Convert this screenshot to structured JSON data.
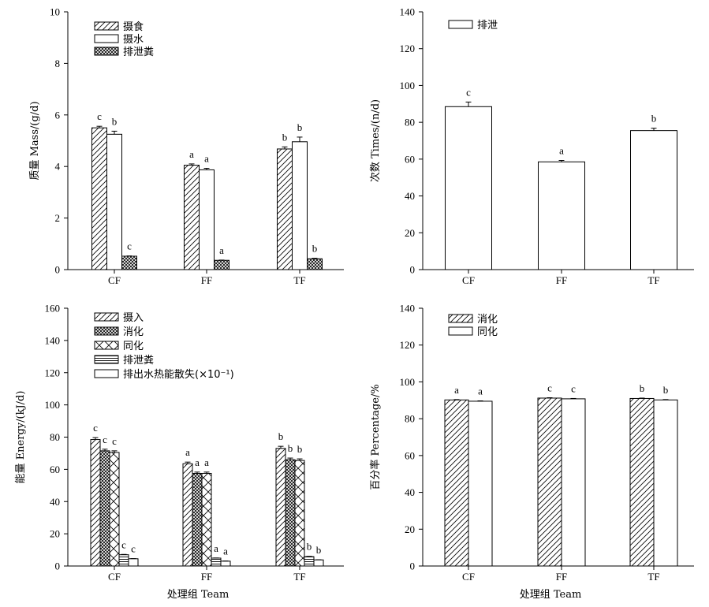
{
  "chart_data": [
    {
      "type": "bar",
      "categories": [
        "CF",
        "FF",
        "TF"
      ],
      "ylabel": "质量 Mass/(g/d)",
      "xlabel": "",
      "ylim": [
        0,
        10
      ],
      "yticks": [
        0,
        2,
        4,
        6,
        8,
        10
      ],
      "legend": "top-left",
      "series": [
        {
          "name": "摄食",
          "pattern": "diag",
          "values": [
            5.5,
            4.05,
            4.68
          ],
          "errors": [
            0.06,
            0.05,
            0.08
          ],
          "labels": [
            "c",
            "a",
            "b"
          ]
        },
        {
          "name": "摄水",
          "pattern": "none",
          "values": [
            5.25,
            3.87,
            4.96
          ],
          "errors": [
            0.12,
            0.06,
            0.18
          ],
          "labels": [
            "b",
            "a",
            "b"
          ]
        },
        {
          "name": "排泄粪",
          "pattern": "cross",
          "values": [
            0.52,
            0.36,
            0.42
          ],
          "errors": [
            0.01,
            0.01,
            0.02
          ],
          "labels": [
            "c",
            "a",
            "b"
          ]
        }
      ]
    },
    {
      "type": "bar",
      "categories": [
        "CF",
        "FF",
        "TF"
      ],
      "ylabel": "次数 Times/(n/d)",
      "xlabel": "",
      "ylim": [
        0,
        140
      ],
      "yticks": [
        0,
        20,
        40,
        60,
        80,
        100,
        120,
        140
      ],
      "legend": "top-left",
      "series": [
        {
          "name": "排泄",
          "pattern": "none",
          "values": [
            88.5,
            58.5,
            75.5
          ],
          "errors": [
            2.5,
            0.8,
            1.3
          ],
          "labels": [
            "c",
            "a",
            "b"
          ]
        }
      ]
    },
    {
      "type": "bar",
      "categories": [
        "CF",
        "FF",
        "TF"
      ],
      "ylabel": "能量 Energy/(kJ/d)",
      "xlabel": "处理组 Team",
      "ylim": [
        0,
        160
      ],
      "yticks": [
        0,
        20,
        40,
        60,
        80,
        100,
        120,
        140,
        160
      ],
      "legend": "top-left",
      "series": [
        {
          "name": "摄入",
          "pattern": "diag",
          "values": [
            78.5,
            63.5,
            73.0
          ],
          "errors": [
            1.2,
            1.0,
            1.3
          ],
          "labels": [
            "c",
            "a",
            "b"
          ]
        },
        {
          "name": "消化",
          "pattern": "cross",
          "values": [
            71.5,
            57.5,
            66.0
          ],
          "errors": [
            1.0,
            0.8,
            1.0
          ],
          "labels": [
            "c",
            "a",
            "b"
          ]
        },
        {
          "name": "同化",
          "pattern": "xbig",
          "values": [
            70.5,
            57.5,
            65.5
          ],
          "errors": [
            1.0,
            0.8,
            1.0
          ],
          "labels": [
            "c",
            "a",
            "b"
          ]
        },
        {
          "name": "排泄粪",
          "pattern": "hlines",
          "values": [
            7.0,
            4.9,
            5.8
          ],
          "errors": [
            0.2,
            0.1,
            0.2
          ],
          "labels": [
            "c",
            "a",
            "b"
          ]
        },
        {
          "name": "排出水热能散失(×10⁻¹)",
          "pattern": "none",
          "values": [
            4.5,
            3.0,
            3.8
          ],
          "errors": [
            0.1,
            0.1,
            0.1
          ],
          "labels": [
            "c",
            "a",
            "b"
          ]
        }
      ]
    },
    {
      "type": "bar",
      "categories": [
        "CF",
        "FF",
        "TF"
      ],
      "ylabel": "百分率 Percentage/%",
      "xlabel": "处理组 Team",
      "ylim": [
        0,
        140
      ],
      "yticks": [
        0,
        20,
        40,
        60,
        80,
        100,
        120,
        140
      ],
      "legend": "top-left",
      "series": [
        {
          "name": "消化",
          "pattern": "diag",
          "values": [
            90.2,
            91.2,
            91.0
          ],
          "errors": [
            0.2,
            0.2,
            0.2
          ],
          "labels": [
            "a",
            "c",
            "b"
          ]
        },
        {
          "name": "同化",
          "pattern": "none",
          "values": [
            89.5,
            90.8,
            90.2
          ],
          "errors": [
            0.2,
            0.2,
            0.2
          ],
          "labels": [
            "a",
            "c",
            "b"
          ]
        }
      ]
    }
  ]
}
